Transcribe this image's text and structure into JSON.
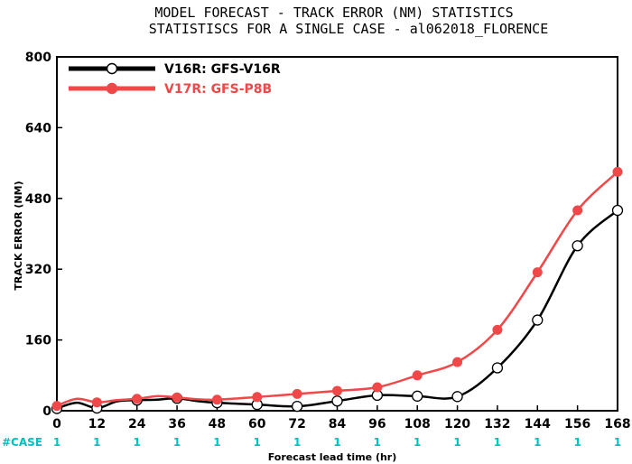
{
  "chart_data": {
    "type": "line",
    "title": "MODEL FORECAST - TRACK ERROR (NM) STATISTICS",
    "subtitle": "STATISTISCS FOR A SINGLE CASE - al062018_FLORENCE",
    "xlabel": "Forecast lead time (hr)",
    "ylabel": "TRACK ERROR (NM)",
    "ylim": [
      0,
      800
    ],
    "xlim": [
      0,
      168
    ],
    "x": [
      0,
      6,
      12,
      18,
      24,
      30,
      36,
      42,
      48,
      60,
      72,
      84,
      96,
      108,
      120,
      132,
      144,
      156,
      168
    ],
    "xticks": [
      "0",
      "12",
      "24",
      "36",
      "48",
      "60",
      "72",
      "84",
      "96",
      "108",
      "120",
      "132",
      "144",
      "156",
      "168"
    ],
    "xtick_values": [
      0,
      12,
      24,
      36,
      48,
      60,
      72,
      84,
      96,
      108,
      120,
      132,
      144,
      156,
      168
    ],
    "yticks": [
      "0",
      "160",
      "320",
      "480",
      "640",
      "800"
    ],
    "ytick_values": [
      0,
      160,
      320,
      480,
      640,
      800
    ],
    "series": [
      {
        "name": "V16R: GFS-V16R",
        "color": "#000000",
        "marker": "open-circle",
        "values": [
          5,
          18,
          6,
          21,
          24,
          25,
          28,
          22,
          18,
          14,
          10,
          22,
          35,
          33,
          32,
          97,
          205,
          373,
          453
        ]
      },
      {
        "name": "V17R: GFS-P8B",
        "color": "#f04848",
        "marker": "filled-circle",
        "values": [
          11,
          27,
          19,
          24,
          27,
          33,
          30,
          26,
          25,
          31,
          38,
          45,
          53,
          80,
          110,
          183,
          313,
          453,
          540
        ]
      }
    ],
    "case_label": "#CASE",
    "case_counts": [
      "1",
      "1",
      "1",
      "1",
      "1",
      "1",
      "1",
      "1",
      "1",
      "1",
      "1",
      "1",
      "1",
      "1",
      "1"
    ],
    "legend_placement": "top-left",
    "grid": false
  }
}
